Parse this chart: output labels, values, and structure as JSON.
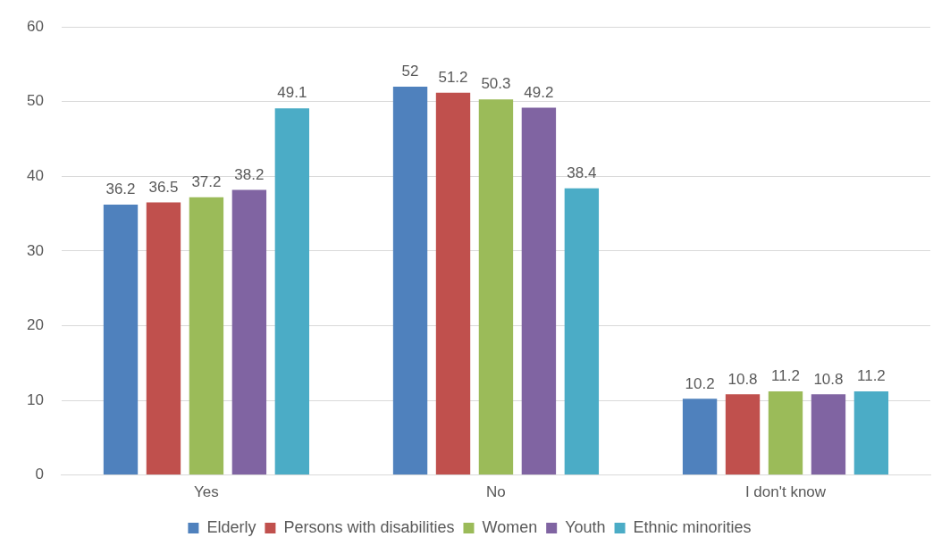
{
  "chart_data": {
    "type": "bar",
    "categories": [
      "Yes",
      "No",
      "I don't know"
    ],
    "series": [
      {
        "name": "Elderly",
        "color": "#4f81bd",
        "values": [
          36.2,
          52,
          10.2
        ]
      },
      {
        "name": "Persons with disabilities",
        "color": "#c0504d",
        "values": [
          36.5,
          51.2,
          10.8
        ]
      },
      {
        "name": "Women",
        "color": "#9bbb59",
        "values": [
          37.2,
          50.3,
          11.2
        ]
      },
      {
        "name": "Youth",
        "color": "#8064a2",
        "values": [
          38.2,
          49.2,
          10.8
        ]
      },
      {
        "name": "Ethnic minorities",
        "color": "#4bacc6",
        "values": [
          49.1,
          38.4,
          11.2
        ]
      }
    ],
    "ylim": [
      0,
      60
    ],
    "yticks": [
      0,
      10,
      20,
      30,
      40,
      50,
      60
    ],
    "grid": "y",
    "legend": "bottom",
    "data_labels": true
  }
}
